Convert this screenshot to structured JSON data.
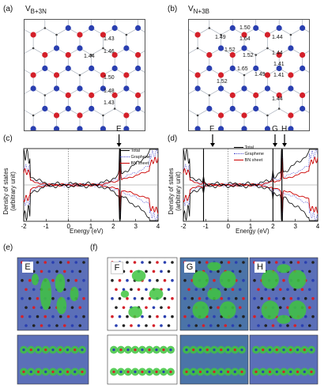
{
  "panel_a": {
    "label": "(a)",
    "title_main": "V",
    "title_sub": "B+3N",
    "bond_lengths": [
      "1.43",
      "1.46",
      "1.44",
      "1.50",
      "1.48",
      "1.43"
    ]
  },
  "panel_b": {
    "label": "(b)",
    "title_main": "V",
    "title_sub": "N+3B",
    "bond_lengths": [
      "1.50",
      "1.49",
      "1.64",
      "1.44",
      "1.52",
      "1.52",
      "1.44",
      "1.41",
      "1.65",
      "1.49",
      "1.41",
      "1.52",
      "1.44"
    ]
  },
  "panel_c": {
    "label": "(c)",
    "ylabel_1": "Density of states",
    "ylabel_2": "(arbitrary unit)",
    "xlabel": "Energy (eV)",
    "marker": "E",
    "legend": [
      "Total",
      "Graphene",
      "BN sheet"
    ]
  },
  "panel_d": {
    "label": "(d)",
    "ylabel_1": "Density of states",
    "ylabel_2": "(arbitrary unit)",
    "xlabel": "Energy (eV)",
    "markers": [
      "F",
      "G",
      "H"
    ],
    "legend": [
      "Total",
      "Graphene",
      "BN sheet"
    ]
  },
  "panel_e": {
    "label": "(e)",
    "tag": "E"
  },
  "panel_f": {
    "label": "(f)",
    "tags": [
      "F",
      "G",
      "H"
    ]
  },
  "chart_data": [
    {
      "type": "line",
      "panel": "c",
      "xlabel": "Energy (eV)",
      "ylabel": "Density of states (arbitrary unit)",
      "xlim": [
        -2,
        4
      ],
      "xticks": [
        "-2",
        "-1",
        "0",
        "1",
        "2",
        "3",
        "4"
      ],
      "annotations": [
        {
          "label": "E",
          "x": 2.3
        }
      ],
      "series": [
        {
          "name": "Total",
          "color": "#000000"
        },
        {
          "name": "Graphene",
          "color": "#4444cc"
        },
        {
          "name": "BN sheet",
          "color": "#cc0000"
        }
      ]
    },
    {
      "type": "line",
      "panel": "d",
      "xlabel": "Energy (eV)",
      "ylabel": "Density of states (arbitrary unit)",
      "xlim": [
        -2,
        4
      ],
      "xticks": [
        "-2",
        "-1",
        "0",
        "1",
        "2",
        "3",
        "4"
      ],
      "annotations": [
        {
          "label": "F",
          "x": -1.1
        },
        {
          "label": "G",
          "x": 2.0
        },
        {
          "label": "H",
          "x": 2.4
        }
      ],
      "series": [
        {
          "name": "Total",
          "color": "#000000"
        },
        {
          "name": "Graphene",
          "color": "#4444cc"
        },
        {
          "name": "BN sheet",
          "color": "#cc0000"
        }
      ]
    }
  ]
}
